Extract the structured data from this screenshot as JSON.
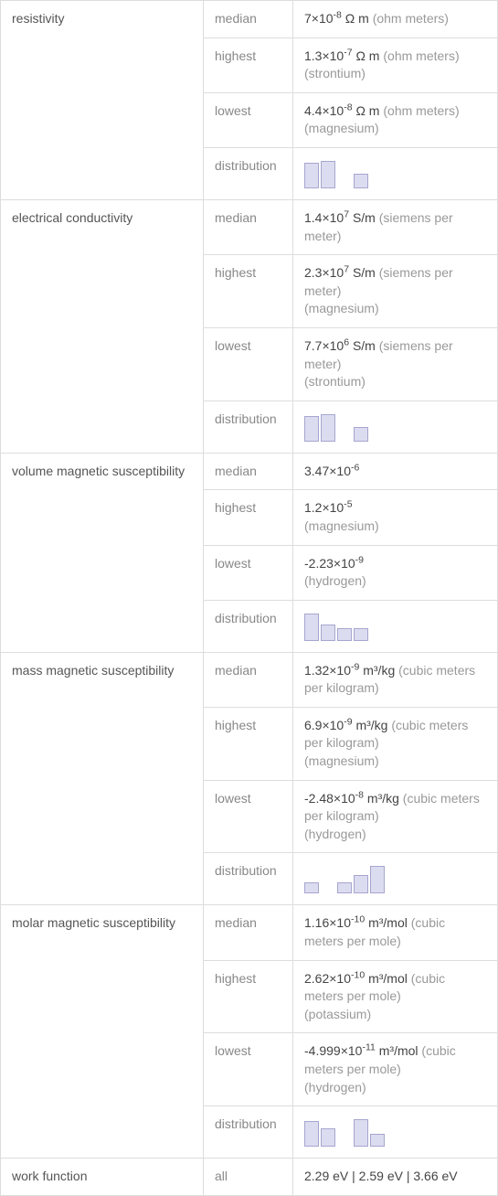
{
  "properties": [
    {
      "name": "resistivity",
      "rows": [
        {
          "stat": "median",
          "val": "7×10",
          "sup": "-8",
          "unit": " Ω m",
          "unit_desc": "(ohm meters)",
          "elem": ""
        },
        {
          "stat": "highest",
          "val": "1.3×10",
          "sup": "-7",
          "unit": " Ω m",
          "unit_desc": "(ohm meters)",
          "elem": "(strontium)"
        },
        {
          "stat": "lowest",
          "val": "4.4×10",
          "sup": "-8",
          "unit": " Ω m",
          "unit_desc": "(ohm meters)",
          "elem": "(magnesium)"
        },
        {
          "stat": "distribution",
          "histogram": [
            28,
            30,
            0,
            16,
            0
          ]
        }
      ]
    },
    {
      "name": "electrical conductivity",
      "rows": [
        {
          "stat": "median",
          "val": "1.4×10",
          "sup": "7",
          "unit": " S/m",
          "unit_desc": "(siemens per meter)",
          "elem": ""
        },
        {
          "stat": "highest",
          "val": "2.3×10",
          "sup": "7",
          "unit": " S/m",
          "unit_desc": "(siemens per meter)",
          "elem": "(magnesium)"
        },
        {
          "stat": "lowest",
          "val": "7.7×10",
          "sup": "6",
          "unit": " S/m",
          "unit_desc": "(siemens per meter)",
          "elem": "(strontium)"
        },
        {
          "stat": "distribution",
          "histogram": [
            28,
            30,
            0,
            16,
            0
          ]
        }
      ]
    },
    {
      "name": "volume magnetic susceptibility",
      "rows": [
        {
          "stat": "median",
          "val": "3.47×10",
          "sup": "-6",
          "unit": "",
          "unit_desc": "",
          "elem": ""
        },
        {
          "stat": "highest",
          "val": "1.2×10",
          "sup": "-5",
          "unit": "",
          "unit_desc": "",
          "elem": "(magnesium)"
        },
        {
          "stat": "lowest",
          "val": "-2.23×10",
          "sup": "-9",
          "unit": "",
          "unit_desc": "",
          "elem": "(hydrogen)"
        },
        {
          "stat": "distribution",
          "histogram": [
            30,
            18,
            14,
            14,
            0
          ]
        }
      ]
    },
    {
      "name": "mass magnetic susceptibility",
      "rows": [
        {
          "stat": "median",
          "val": "1.32×10",
          "sup": "-9",
          "unit": " m³/kg",
          "unit_desc": "(cubic meters per kilogram)",
          "elem": ""
        },
        {
          "stat": "highest",
          "val": "6.9×10",
          "sup": "-9",
          "unit": " m³/kg",
          "unit_desc": "(cubic meters per kilogram)",
          "elem": "(magnesium)"
        },
        {
          "stat": "lowest",
          "val": "-2.48×10",
          "sup": "-8",
          "unit": " m³/kg",
          "unit_desc": "(cubic meters per kilogram)",
          "elem": "(hydrogen)"
        },
        {
          "stat": "distribution",
          "histogram": [
            12,
            0,
            12,
            20,
            30
          ]
        }
      ]
    },
    {
      "name": "molar magnetic susceptibility",
      "rows": [
        {
          "stat": "median",
          "val": "1.16×10",
          "sup": "-10",
          "unit": " m³/mol",
          "unit_desc": "(cubic meters per mole)",
          "elem": ""
        },
        {
          "stat": "highest",
          "val": "2.62×10",
          "sup": "-10",
          "unit": " m³/mol",
          "unit_desc": "(cubic meters per mole)",
          "elem": "(potassium)"
        },
        {
          "stat": "lowest",
          "val": "-4.999×10",
          "sup": "-11",
          "unit": " m³/mol",
          "unit_desc": "(cubic meters per mole)",
          "elem": "(hydrogen)"
        },
        {
          "stat": "distribution",
          "histogram": [
            28,
            20,
            0,
            30,
            14
          ]
        }
      ]
    },
    {
      "name": "work function",
      "rows": [
        {
          "stat": "all",
          "plain": "2.29 eV   |   2.59 eV   |   3.66 eV"
        }
      ]
    }
  ],
  "style": {
    "bar_fill": "#dcdcf0",
    "bar_border": "#a6a6d0",
    "border_color": "#ddd"
  }
}
